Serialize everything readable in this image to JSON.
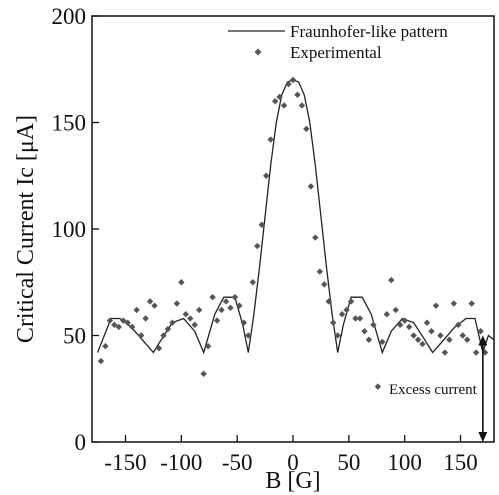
{
  "chart_data": {
    "type": "scatter",
    "xlabel": "B [G]",
    "ylabel": "Critical Current Ic [μA]",
    "xlim": [
      -180,
      180
    ],
    "ylim": [
      0,
      200
    ],
    "xticks": [
      -150,
      -100,
      -50,
      0,
      50,
      100,
      150
    ],
    "yticks": [
      0,
      50,
      100,
      150,
      200
    ],
    "legend_placement": "top-right",
    "series": [
      {
        "name": "Fraunhofer-like pattern",
        "kind": "line",
        "color": "#222222",
        "x": [
          -175,
          -163,
          -155,
          -145,
          -135,
          -125,
          -118,
          -108,
          -98,
          -88,
          -80,
          -70,
          -62,
          -52,
          -45,
          -40,
          -35,
          -30,
          -25,
          -20,
          -15,
          -10,
          -5,
          0,
          5,
          10,
          15,
          20,
          25,
          30,
          35,
          40,
          45,
          52,
          62,
          70,
          80,
          88,
          98,
          108,
          118,
          125,
          135,
          145,
          155,
          163,
          170,
          175,
          180
        ],
        "y": [
          42,
          58,
          58,
          54,
          48,
          42,
          48,
          56,
          58,
          52,
          42,
          60,
          68,
          68,
          55,
          42,
          60,
          82,
          106,
          130,
          150,
          163,
          169,
          170,
          169,
          163,
          150,
          130,
          106,
          82,
          60,
          42,
          55,
          68,
          68,
          60,
          42,
          52,
          58,
          56,
          48,
          42,
          48,
          54,
          58,
          58,
          42,
          50,
          48
        ]
      },
      {
        "name": "Experimental",
        "kind": "scatter",
        "color": "#555555",
        "x": [
          -172,
          -168,
          -164,
          -160,
          -156,
          -152,
          -148,
          -144,
          -140,
          -136,
          -132,
          -128,
          -124,
          -120,
          -116,
          -112,
          -108,
          -104,
          -100,
          -96,
          -92,
          -88,
          -84,
          -80,
          -76,
          -72,
          -68,
          -64,
          -60,
          -56,
          -52,
          -48,
          -44,
          -40,
          -36,
          -32,
          -28,
          -24,
          -20,
          -16,
          -12,
          -8,
          -4,
          0,
          4,
          8,
          12,
          16,
          20,
          24,
          28,
          32,
          36,
          40,
          44,
          48,
          52,
          56,
          60,
          64,
          68,
          72,
          76,
          80,
          84,
          88,
          92,
          96,
          100,
          104,
          108,
          112,
          116,
          120,
          124,
          128,
          132,
          136,
          140,
          144,
          148,
          152,
          156,
          160,
          164,
          168,
          172
        ],
        "y": [
          38,
          45,
          57,
          55,
          54,
          57,
          56,
          54,
          62,
          50,
          58,
          66,
          64,
          44,
          50,
          53,
          56,
          65,
          75,
          60,
          58,
          55,
          62,
          32,
          45,
          68,
          57,
          62,
          66,
          63,
          68,
          64,
          56,
          50,
          75,
          92,
          102,
          125,
          142,
          160,
          162,
          158,
          168,
          170,
          163,
          158,
          147,
          120,
          96,
          80,
          74,
          66,
          56,
          50,
          60,
          62,
          66,
          58,
          58,
          52,
          48,
          55,
          26,
          47,
          60,
          76,
          62,
          55,
          57,
          54,
          50,
          48,
          46,
          56,
          52,
          64,
          50,
          42,
          48,
          65,
          55,
          50,
          48,
          65,
          42,
          52,
          42
        ]
      }
    ],
    "annotation": {
      "text": "Excess current",
      "x": 170,
      "y_from": 0,
      "y_to": 50
    }
  }
}
